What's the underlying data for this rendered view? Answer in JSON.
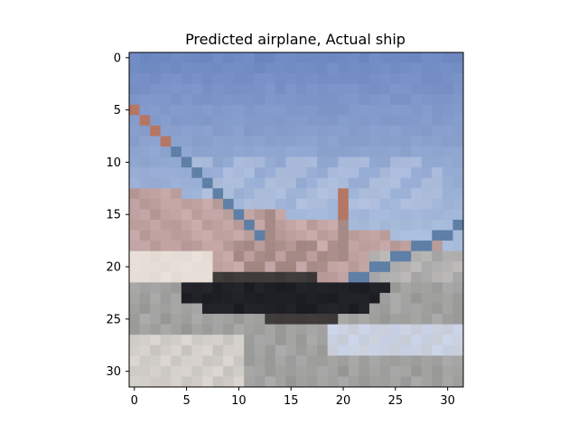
{
  "figure": {
    "title": "Predicted airplane, Actual ship",
    "predicted_label": "airplane",
    "actual_label": "ship"
  },
  "image": {
    "description_icon": "pixelated-ship-photo",
    "grid_size": 32,
    "x_ticks": [
      0,
      5,
      10,
      15,
      20,
      25,
      30
    ],
    "y_ticks": [
      0,
      5,
      10,
      15,
      20,
      25,
      30
    ],
    "colors": {
      "sky_top": "#6f89c2",
      "sky_bottom": "#a9bddc",
      "cloud": "#c4cde4",
      "hill": "#c7aaa9",
      "hill_dark": "#a68a86",
      "sand": "#e7ded7",
      "sea": "#a8a8a8",
      "hull": "#1f2026",
      "hull_mid": "#3c3938",
      "wake": "#c9d2e7",
      "rope": "#5e7fa6",
      "rope_orange": "#b57663",
      "ground_light": "#cac7c3",
      "ground_dark": "#8f8f8c"
    }
  }
}
